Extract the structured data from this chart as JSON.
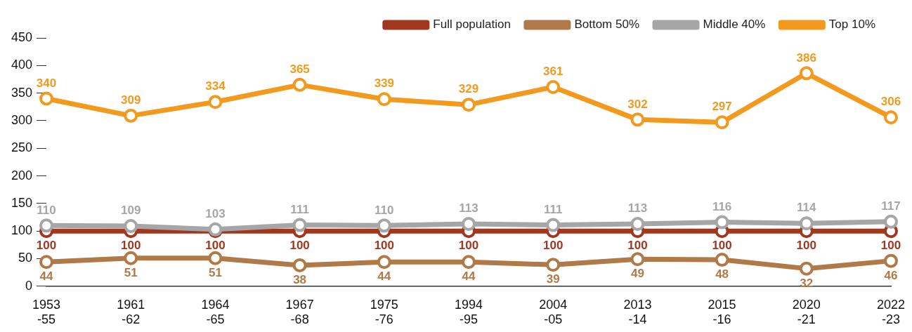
{
  "chart_data": {
    "type": "line",
    "categories": [
      "1953\n-55",
      "1961\n-62",
      "1964\n-65",
      "1967\n-68",
      "1975\n-76",
      "1994\n-95",
      "2004\n-05",
      "2013\n-14",
      "2015\n-16",
      "2020\n-21",
      "2022\n-23"
    ],
    "series": [
      {
        "name": "Full population",
        "color": "#a0371e",
        "values": [
          100,
          100,
          100,
          100,
          100,
          100,
          100,
          100,
          100,
          100,
          100
        ]
      },
      {
        "name": "Bottom 50%",
        "color": "#b07a48",
        "values": [
          44,
          51,
          51,
          38,
          44,
          44,
          39,
          49,
          48,
          32,
          46
        ]
      },
      {
        "name": "Middle 40%",
        "color": "#a6a6a6",
        "values": [
          110,
          109,
          103,
          111,
          110,
          113,
          111,
          113,
          116,
          114,
          117
        ]
      },
      {
        "name": "Top 10%",
        "color": "#f39a1e",
        "values": [
          340,
          309,
          334,
          365,
          339,
          329,
          361,
          302,
          297,
          386,
          306
        ]
      }
    ],
    "ylim": [
      0,
      450
    ],
    "yticks": [
      0,
      50,
      100,
      150,
      200,
      250,
      300,
      350,
      400,
      450
    ],
    "grid": false,
    "legend": "top right",
    "marker": "circle",
    "line_style": "solid",
    "data_labels": true
  }
}
